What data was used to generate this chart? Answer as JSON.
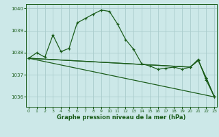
{
  "title": "Graphe pression niveau de la mer (hPa)",
  "bg_color": "#cce8e8",
  "grid_color": "#aacccc",
  "line_color": "#1a5c1a",
  "xlim": [
    -0.3,
    23.3
  ],
  "ylim": [
    1035.55,
    1040.2
  ],
  "yticks": [
    1036,
    1037,
    1038,
    1039,
    1040
  ],
  "xticks": [
    0,
    1,
    2,
    3,
    4,
    5,
    6,
    7,
    8,
    9,
    10,
    11,
    12,
    13,
    14,
    15,
    16,
    17,
    18,
    19,
    20,
    21,
    22,
    23
  ],
  "series1_x": [
    0,
    1,
    2,
    3,
    4,
    5,
    6,
    7,
    8,
    9,
    10,
    11,
    12,
    13,
    14,
    15,
    16,
    17,
    18,
    19,
    20,
    21,
    22,
    23
  ],
  "series1_y": [
    1037.75,
    1038.0,
    1037.8,
    1038.8,
    1038.05,
    1038.2,
    1039.35,
    1039.55,
    1039.75,
    1039.93,
    1039.87,
    1039.3,
    1038.6,
    1038.15,
    1037.5,
    1037.4,
    1037.25,
    1037.3,
    1037.35,
    1037.25,
    1037.35,
    1037.65,
    1036.85,
    1036.0
  ],
  "series2_x": [
    0,
    23
  ],
  "series2_y": [
    1037.75,
    1036.0
  ],
  "series3_x": [
    0,
    20,
    21,
    22,
    23
  ],
  "series3_y": [
    1037.75,
    1037.35,
    1037.65,
    1036.85,
    1036.0
  ],
  "series4_x": [
    0,
    20,
    21,
    22,
    23
  ],
  "series4_y": [
    1037.75,
    1037.35,
    1037.7,
    1036.75,
    1036.0
  ]
}
